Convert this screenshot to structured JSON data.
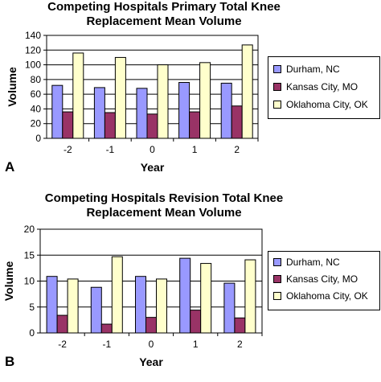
{
  "chart_data": [
    {
      "panel_letter": "A",
      "type": "bar",
      "title_lines": [
        "Competing Hospitals Primary Total Knee",
        "Replacement Mean Volume"
      ],
      "xlabel": "Year",
      "ylabel": "Volume",
      "categories": [
        "-2",
        "-1",
        "0",
        "1",
        "2"
      ],
      "ylim": [
        0,
        140
      ],
      "yticks": [
        "0",
        "20",
        "40",
        "60",
        "80",
        "100",
        "120",
        "140"
      ],
      "grid": true,
      "legend_position": "right",
      "series": [
        {
          "name": "Durham, NC",
          "color": "#9999ff",
          "values": [
            72,
            69,
            68,
            76,
            75
          ]
        },
        {
          "name": "Kansas City, MO",
          "color": "#993366",
          "values": [
            36,
            35,
            33,
            36,
            44
          ]
        },
        {
          "name": "Oklahoma City, OK",
          "color": "#ffffcc",
          "values": [
            116,
            110,
            100,
            103,
            127
          ]
        }
      ]
    },
    {
      "panel_letter": "B",
      "type": "bar",
      "title_lines": [
        "Competing Hospitals Revision Total Knee",
        "Replacement Mean Volume"
      ],
      "xlabel": "Year",
      "ylabel": "Volume",
      "categories": [
        "-2",
        "-1",
        "0",
        "1",
        "2"
      ],
      "ylim": [
        0,
        20
      ],
      "yticks": [
        "0",
        "5",
        "10",
        "15",
        "20"
      ],
      "grid": true,
      "legend_position": "right",
      "series": [
        {
          "name": "Durham, NC",
          "color": "#9999ff",
          "values": [
            10.9,
            8.8,
            10.9,
            14.4,
            9.6
          ]
        },
        {
          "name": "Kansas City, MO",
          "color": "#993366",
          "values": [
            3.4,
            1.7,
            3.0,
            4.4,
            2.9
          ]
        },
        {
          "name": "Oklahoma City, OK",
          "color": "#ffffcc",
          "values": [
            10.4,
            14.7,
            10.4,
            13.4,
            14.1
          ]
        }
      ]
    }
  ]
}
